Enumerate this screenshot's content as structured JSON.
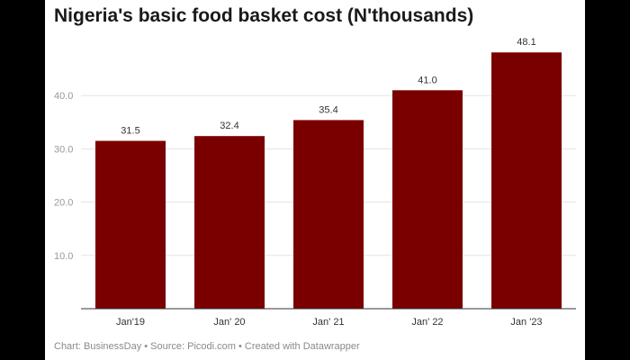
{
  "chart_data": {
    "type": "bar",
    "title": "Nigeria's basic food basket cost (N'thousands)",
    "categories": [
      "Jan'19",
      "Jan' 20",
      "Jan' 21",
      "Jan' 22",
      "Jan '23"
    ],
    "values": [
      31.5,
      32.4,
      35.4,
      41.0,
      48.1
    ],
    "value_labels": [
      "31.5",
      "32.4",
      "35.4",
      "41.0",
      "48.1"
    ],
    "y_ticks": [
      10,
      20,
      30,
      40
    ],
    "y_tick_labels": [
      "10.0",
      "20.0",
      "30.0",
      "40.0"
    ],
    "ylim": [
      0,
      50
    ],
    "xlabel": "",
    "ylabel": "",
    "grid": true,
    "bar_color": "#7a0000"
  },
  "footer": {
    "credit": "Chart: BusinessDay • Source: Picodi.com • Created with Datawrapper"
  }
}
